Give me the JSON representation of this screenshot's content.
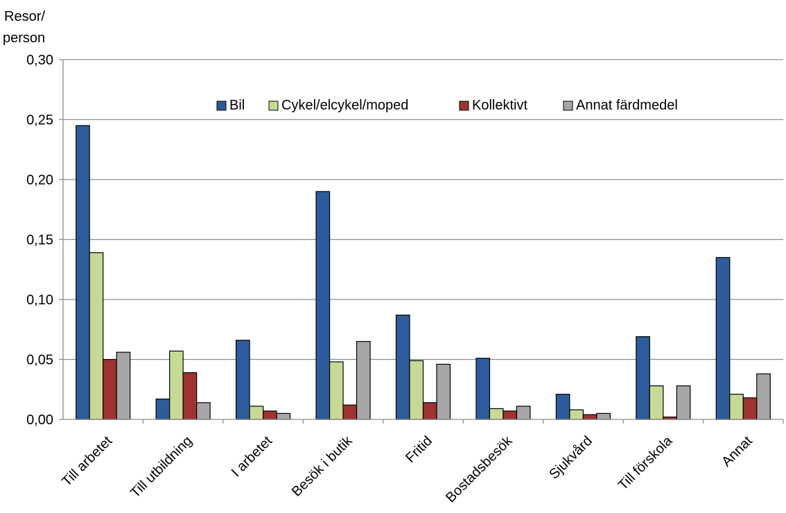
{
  "chart_data": {
    "type": "bar",
    "ylabel": [
      "Resor/",
      "person"
    ],
    "xlabel": "",
    "ylim": [
      0,
      0.3
    ],
    "yticks": [
      "0,00",
      "0,05",
      "0,10",
      "0,15",
      "0,20",
      "0,25",
      "0,30"
    ],
    "ytick_values": [
      0,
      0.05,
      0.1,
      0.15,
      0.2,
      0.25,
      0.3
    ],
    "grid": "horizontal",
    "legend_position": "top-right",
    "categories": [
      "Till arbetet",
      "Till utbildning",
      "I arbetet",
      "Besök i butik",
      "Fritid",
      "Bostadsbesök",
      "Sjukvård",
      "Till förskola",
      "Annat"
    ],
    "series": [
      {
        "name": "Bil",
        "color": "#2E5C9A",
        "values": [
          0.245,
          0.017,
          0.066,
          0.19,
          0.087,
          0.051,
          0.021,
          0.069,
          0.135
        ]
      },
      {
        "name": "Cykel/elcykel/moped",
        "color": "#C6DA96",
        "values": [
          0.139,
          0.057,
          0.011,
          0.048,
          0.049,
          0.009,
          0.008,
          0.028,
          0.021
        ]
      },
      {
        "name": "Kollektivt",
        "color": "#9E3332",
        "values": [
          0.05,
          0.039,
          0.007,
          0.012,
          0.014,
          0.007,
          0.004,
          0.002,
          0.018
        ]
      },
      {
        "name": "Annat färdmedel",
        "color": "#A6A6A6",
        "values": [
          0.056,
          0.014,
          0.005,
          0.065,
          0.046,
          0.011,
          0.005,
          0.028,
          0.038
        ]
      }
    ]
  }
}
